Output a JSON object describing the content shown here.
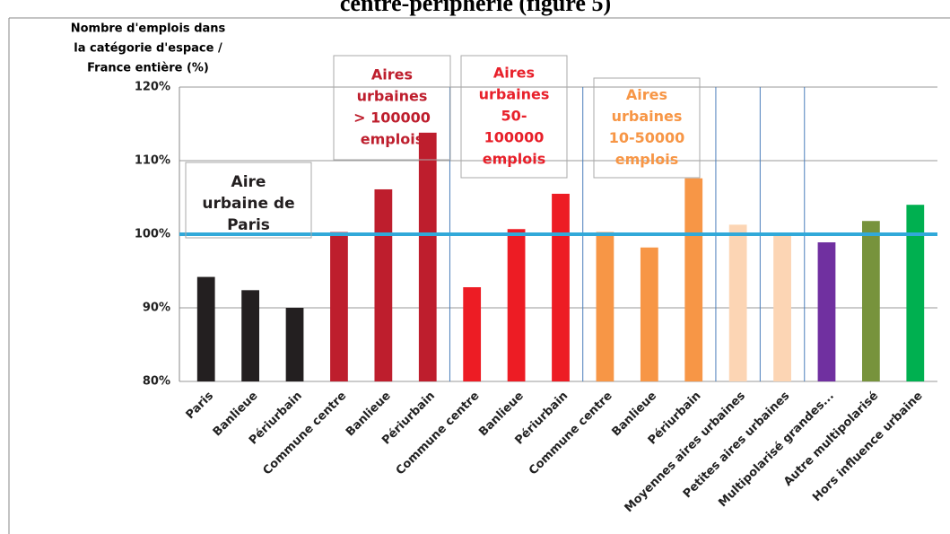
{
  "chart_data": {
    "type": "bar",
    "title": "centre-périphérie (figure 5)",
    "ylabel": [
      "Nombre d'emplois dans",
      "la catégorie d'espace /",
      "France entière (%)"
    ],
    "categories": [
      "Paris",
      "Banlieue",
      "Périurbain",
      "Commune centre",
      "Banlieue",
      "Périurbain",
      "Commune centre",
      "Banlieue",
      "Périurbain",
      "Commune centre",
      "Banlieue",
      "Périurbain",
      "Moyennes aires urbaines",
      "Petites aires urbaines",
      "Multipolarisé grandes...",
      "Autre multipolarisé",
      "Hors influence urbaine"
    ],
    "values": [
      94.2,
      92.4,
      90,
      100.3,
      106.1,
      113.8,
      92.8,
      100.7,
      105.5,
      100.3,
      98.2,
      107.6,
      101.3,
      100,
      98.9,
      101.8,
      104
    ],
    "colors": [
      "#231f20",
      "#231f20",
      "#231f20",
      "#be1e2d",
      "#be1e2d",
      "#be1e2d",
      "#ed1c24",
      "#ed1c24",
      "#ed1c24",
      "#f79646",
      "#f79646",
      "#f79646",
      "#fcd5b4",
      "#fcd5b4",
      "#7030a0",
      "#77933c",
      "#00b050"
    ],
    "ylim": [
      80,
      120
    ],
    "yticks": [
      {
        "value": 80,
        "label": "80%"
      },
      {
        "value": 90,
        "label": "90%"
      },
      {
        "value": 100,
        "label": "100%"
      },
      {
        "value": 110,
        "label": "110%"
      },
      {
        "value": 120,
        "label": "120%"
      }
    ],
    "grid": true,
    "reference_line": {
      "value": 100,
      "color": "#31a9d9"
    },
    "annotations": [
      {
        "lines": [
          "Aire",
          "urbaine de",
          "Paris"
        ],
        "color": "#231f20"
      },
      {
        "lines": [
          "Aires",
          "urbaines",
          "> 100000",
          "emplois"
        ],
        "color": "#be1e2d"
      },
      {
        "lines": [
          "Aires",
          "urbaines",
          "50-",
          "100000",
          "emplois"
        ],
        "color": "#e8202a"
      },
      {
        "lines": [
          "Aires",
          "urbaines",
          "10-50000",
          "emplois"
        ],
        "color": "#f79646"
      }
    ]
  }
}
